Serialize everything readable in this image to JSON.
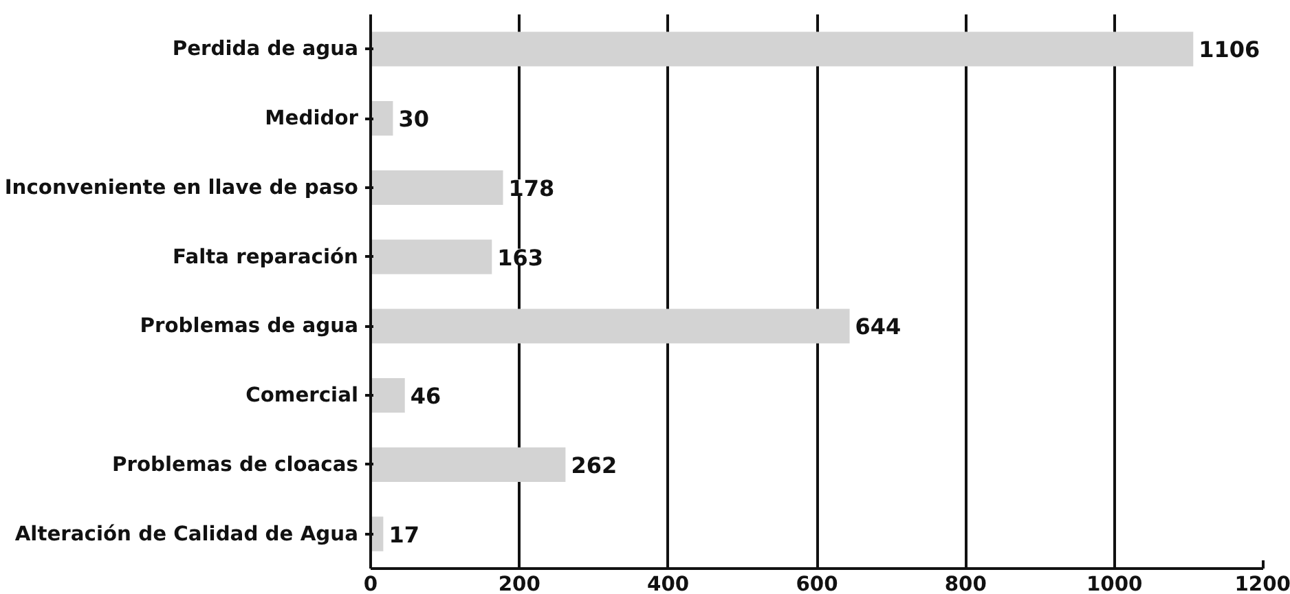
{
  "chart_data": {
    "type": "bar",
    "orientation": "horizontal",
    "categories": [
      "Perdida de agua",
      "Medidor",
      "Inconveniente en llave de paso",
      "Falta reparación",
      "Problemas de agua",
      "Comercial",
      "Problemas de cloacas",
      "Alteración de Calidad de Agua"
    ],
    "values": [
      1106,
      30,
      178,
      163,
      644,
      46,
      262,
      17
    ],
    "color": "#d3d3d3",
    "xlim": [
      0,
      1200
    ],
    "xticks": [
      0,
      200,
      400,
      600,
      800,
      1000,
      1200
    ],
    "grid": "x",
    "data_labels": true
  }
}
